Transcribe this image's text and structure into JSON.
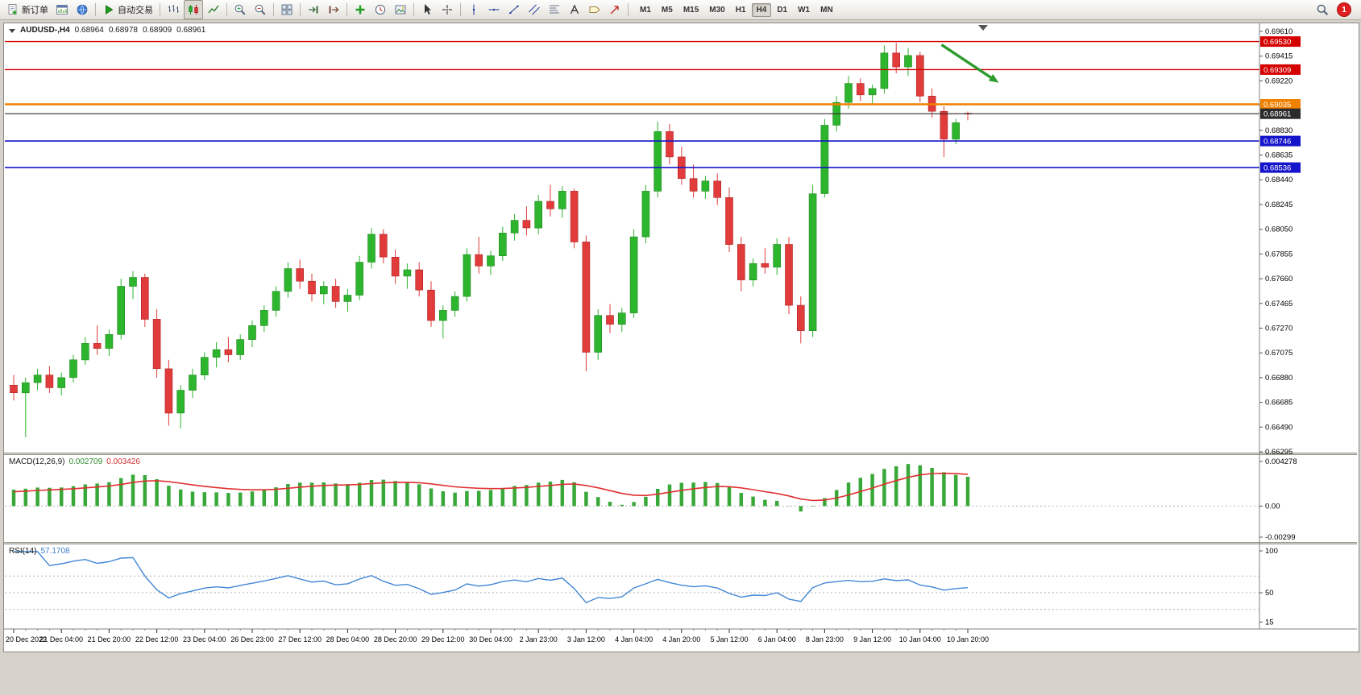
{
  "toolbar": {
    "new_order_label": "新订单",
    "autotrading_label": "自动交易",
    "timeframes": [
      "M1",
      "M5",
      "M15",
      "M30",
      "H1",
      "H4",
      "D1",
      "W1",
      "MN"
    ],
    "active_timeframe": "H4",
    "notification_count": "1"
  },
  "chart_data": {
    "type": "candlestick",
    "symbol": "AUDUSD",
    "timeframe": "H4",
    "title_label": "AUDUSD-,H4",
    "ohlc": {
      "open": "0.68964",
      "high": "0.68978",
      "low": "0.68909",
      "close": "0.68961"
    },
    "price_scale": {
      "top": 0.6961,
      "bottom": 0.66295
    },
    "price_axis_labels": [
      "0.69610",
      "0.69415",
      "0.69220",
      "0.69025",
      "0.68830",
      "0.68635",
      "0.68440",
      "0.68245",
      "0.68050",
      "0.67855",
      "0.67660",
      "0.67465",
      "0.67270",
      "0.67075",
      "0.66880",
      "0.66685",
      "0.66490",
      "0.66295"
    ],
    "time_labels": [
      "20 Dec 2022",
      "21 Dec 04:00",
      "21 Dec 20:00",
      "22 Dec 12:00",
      "23 Dec 04:00",
      "26 Dec 23:00",
      "27 Dec 12:00",
      "28 Dec 04:00",
      "28 Dec 20:00",
      "29 Dec 12:00",
      "30 Dec 04:00",
      "2 Jan 23:00",
      "3 Jan 12:00",
      "4 Jan 04:00",
      "4 Jan 20:00",
      "5 Jan 12:00",
      "6 Jan 04:00",
      "8 Jan 23:00",
      "9 Jan 12:00",
      "10 Jan 04:00",
      "10 Jan 20:00"
    ],
    "colors": {
      "bull": "#2EB52E",
      "bull_border": "#1C871C",
      "bear": "#E13B3B",
      "bear_border": "#AE2424"
    },
    "lines": [
      {
        "price": 0.6953,
        "label": "0.69530",
        "color": "#D40000",
        "width": 1.4
      },
      {
        "price": 0.69309,
        "label": "0.69309",
        "color": "#D40000",
        "width": 1.4
      },
      {
        "price": 0.69035,
        "label": "0.69035",
        "color": "#F08000",
        "width": 2.4
      },
      {
        "price": 0.68961,
        "label": "0.68961",
        "color": "#2B2B2B",
        "width": 1.2
      },
      {
        "price": 0.68746,
        "label": "0.68746",
        "color": "#1414CC",
        "width": 1.6
      },
      {
        "price": 0.68536,
        "label": "0.68536",
        "color": "#1414CC",
        "width": 1.6
      }
    ],
    "arrow": {
      "from": {
        "index": 77.8,
        "price": 0.69505
      },
      "to": {
        "index": 82.6,
        "price": 0.69205
      },
      "color": "#2E9B2E"
    },
    "candles": [
      [
        0.6682,
        0.669,
        0.667,
        0.6676
      ],
      [
        0.6676,
        0.6688,
        0.6641,
        0.6684
      ],
      [
        0.6684,
        0.6695,
        0.6678,
        0.669
      ],
      [
        0.669,
        0.6697,
        0.6676,
        0.668
      ],
      [
        0.668,
        0.6692,
        0.6674,
        0.6688
      ],
      [
        0.6688,
        0.6706,
        0.6684,
        0.6702
      ],
      [
        0.6702,
        0.672,
        0.6698,
        0.6715
      ],
      [
        0.6715,
        0.6729,
        0.6706,
        0.6711
      ],
      [
        0.6711,
        0.6726,
        0.6705,
        0.6722
      ],
      [
        0.6722,
        0.6766,
        0.6718,
        0.676
      ],
      [
        0.676,
        0.6772,
        0.675,
        0.6767
      ],
      [
        0.6767,
        0.677,
        0.6728,
        0.6734
      ],
      [
        0.6734,
        0.6742,
        0.6688,
        0.6695
      ],
      [
        0.6695,
        0.6702,
        0.665,
        0.666
      ],
      [
        0.666,
        0.6682,
        0.6648,
        0.6678
      ],
      [
        0.6678,
        0.6695,
        0.6672,
        0.669
      ],
      [
        0.669,
        0.6708,
        0.6686,
        0.6704
      ],
      [
        0.6704,
        0.6716,
        0.6696,
        0.671
      ],
      [
        0.671,
        0.672,
        0.67,
        0.6706
      ],
      [
        0.6706,
        0.6722,
        0.6702,
        0.6718
      ],
      [
        0.6718,
        0.6733,
        0.6712,
        0.6729
      ],
      [
        0.6729,
        0.6745,
        0.6724,
        0.6741
      ],
      [
        0.6741,
        0.676,
        0.6736,
        0.6756
      ],
      [
        0.6756,
        0.6779,
        0.6751,
        0.6774
      ],
      [
        0.6774,
        0.6781,
        0.6758,
        0.6764
      ],
      [
        0.6764,
        0.677,
        0.6748,
        0.6754
      ],
      [
        0.6754,
        0.6764,
        0.6746,
        0.676
      ],
      [
        0.676,
        0.6766,
        0.6743,
        0.6748
      ],
      [
        0.6748,
        0.6758,
        0.674,
        0.6753
      ],
      [
        0.6753,
        0.6784,
        0.6749,
        0.6779
      ],
      [
        0.6779,
        0.6806,
        0.6774,
        0.6801
      ],
      [
        0.6801,
        0.6805,
        0.6778,
        0.6783
      ],
      [
        0.6783,
        0.6789,
        0.6762,
        0.6768
      ],
      [
        0.6768,
        0.6778,
        0.6758,
        0.6773
      ],
      [
        0.6773,
        0.6779,
        0.6752,
        0.6757
      ],
      [
        0.6757,
        0.6764,
        0.6728,
        0.6733
      ],
      [
        0.6733,
        0.6745,
        0.6719,
        0.6741
      ],
      [
        0.6741,
        0.6756,
        0.6736,
        0.6752
      ],
      [
        0.6752,
        0.679,
        0.6748,
        0.6785
      ],
      [
        0.6785,
        0.6799,
        0.677,
        0.6776
      ],
      [
        0.6776,
        0.6788,
        0.6769,
        0.6784
      ],
      [
        0.6784,
        0.6807,
        0.678,
        0.6802
      ],
      [
        0.6802,
        0.6817,
        0.6796,
        0.6812
      ],
      [
        0.6812,
        0.6823,
        0.68,
        0.6806
      ],
      [
        0.6806,
        0.6832,
        0.6801,
        0.6827
      ],
      [
        0.6827,
        0.684,
        0.6815,
        0.6821
      ],
      [
        0.6821,
        0.6839,
        0.6814,
        0.6835
      ],
      [
        0.6835,
        0.6837,
        0.679,
        0.6795
      ],
      [
        0.6795,
        0.68,
        0.6693,
        0.6708
      ],
      [
        0.6708,
        0.6742,
        0.6702,
        0.6737
      ],
      [
        0.6737,
        0.6746,
        0.6723,
        0.673
      ],
      [
        0.673,
        0.6743,
        0.6724,
        0.6739
      ],
      [
        0.6739,
        0.6805,
        0.6735,
        0.6799
      ],
      [
        0.6799,
        0.684,
        0.6794,
        0.6835
      ],
      [
        0.6835,
        0.689,
        0.683,
        0.6882
      ],
      [
        0.6882,
        0.6888,
        0.6856,
        0.6862
      ],
      [
        0.6862,
        0.687,
        0.684,
        0.6845
      ],
      [
        0.6845,
        0.6856,
        0.683,
        0.6835
      ],
      [
        0.6835,
        0.6847,
        0.6829,
        0.6843
      ],
      [
        0.6843,
        0.6849,
        0.6824,
        0.683
      ],
      [
        0.683,
        0.6838,
        0.6787,
        0.6793
      ],
      [
        0.6793,
        0.6799,
        0.6756,
        0.6765
      ],
      [
        0.6765,
        0.6782,
        0.676,
        0.6778
      ],
      [
        0.6778,
        0.679,
        0.677,
        0.6775
      ],
      [
        0.6775,
        0.6798,
        0.6769,
        0.6793
      ],
      [
        0.6793,
        0.6799,
        0.6738,
        0.6745
      ],
      [
        0.6745,
        0.6752,
        0.6715,
        0.6725
      ],
      [
        0.6725,
        0.684,
        0.672,
        0.6833
      ],
      [
        0.6833,
        0.6892,
        0.683,
        0.6887
      ],
      [
        0.6887,
        0.691,
        0.6882,
        0.6905
      ],
      [
        0.6905,
        0.6926,
        0.69,
        0.692
      ],
      [
        0.692,
        0.6924,
        0.6906,
        0.6911
      ],
      [
        0.6911,
        0.6919,
        0.6904,
        0.6916
      ],
      [
        0.6916,
        0.695,
        0.6912,
        0.6944
      ],
      [
        0.6944,
        0.6952,
        0.6928,
        0.6933
      ],
      [
        0.6933,
        0.6948,
        0.6926,
        0.6942
      ],
      [
        0.6942,
        0.6945,
        0.6905,
        0.691
      ],
      [
        0.691,
        0.6916,
        0.6893,
        0.6898
      ],
      [
        0.6898,
        0.6902,
        0.6862,
        0.6876
      ],
      [
        0.6876,
        0.6892,
        0.6872,
        0.6889
      ],
      [
        0.68964,
        0.68978,
        0.68909,
        0.68961
      ]
    ]
  },
  "macd": {
    "label": "MACD(12,26,9)",
    "value_main": "0.002709",
    "value_signal": "0.003426",
    "axis_labels": [
      "0.004278",
      "0.00",
      "-0.00299"
    ],
    "params": [
      12,
      26,
      9
    ],
    "histogram_color": "#38A838",
    "signal_color": "#E03030"
  },
  "rsi": {
    "label": "RSI(14)",
    "value": "57.1708",
    "period": 14,
    "axis_labels": [
      {
        "value": 100,
        "text": "100"
      },
      {
        "value": 50,
        "text": "50"
      },
      {
        "value": 15,
        "text": "15"
      }
    ],
    "levels": [
      70,
      50,
      30
    ],
    "line_color": "#4287D6",
    "level_color": "#AFAFAF"
  }
}
